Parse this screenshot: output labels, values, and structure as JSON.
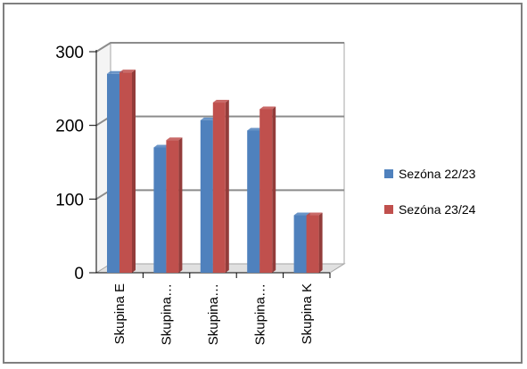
{
  "chart_data": {
    "type": "bar",
    "categories": [
      "Skupina E",
      "Skupina…",
      "Skupina…",
      "Skupina…",
      "Skupina K"
    ],
    "series": [
      {
        "name": "Sezóna 22/23",
        "values": [
          270,
          170,
          207,
          193,
          78
        ],
        "color": "#4f81bd",
        "side_color": "#3a6395"
      },
      {
        "name": "Sezóna 23/24",
        "values": [
          272,
          180,
          231,
          222,
          78
        ],
        "color": "#c0504d",
        "side_color": "#933c3a"
      }
    ],
    "y_ticks": [
      "300",
      "200",
      "100",
      "0"
    ],
    "ylim": [
      0,
      300
    ],
    "grid": true,
    "legend": "right",
    "title": "",
    "xlabel": "",
    "ylabel": ""
  }
}
